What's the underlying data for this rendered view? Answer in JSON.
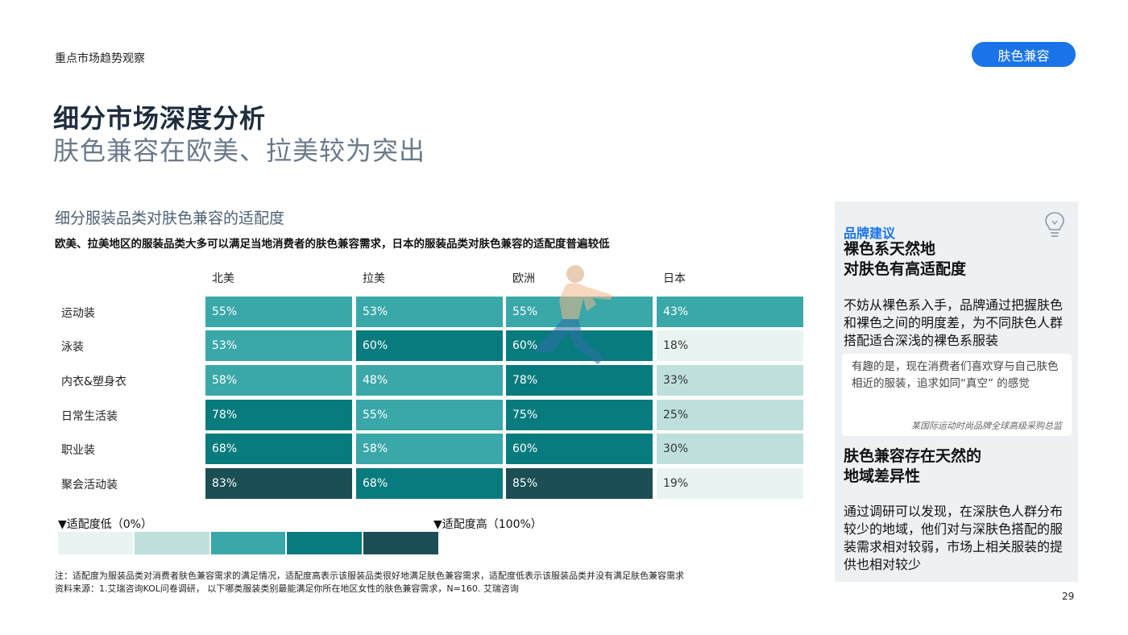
{
  "header": {
    "section_tag": "重点市场趋势观察",
    "category_pill": "肤色兼容"
  },
  "titles": {
    "main": "细分市场深度分析",
    "sub": "肤色兼容在欧美、拉美较为突出"
  },
  "chart": {
    "title": "细分服装品类对肤色兼容的适配度",
    "subtitle": "欧美、拉美地区的服装品类大多可以满足当地消费者的肤色兼容需求，日本的服装品类对肤色兼容的适配度普遍较低"
  },
  "chart_data": {
    "type": "heatmap",
    "columns": [
      "北美",
      "拉美",
      "欧洲",
      "日本"
    ],
    "rows": [
      "运动装",
      "泳装",
      "内衣&塑身衣",
      "日常生活装",
      "职业装",
      "聚会活动装"
    ],
    "values": [
      [
        55,
        53,
        55,
        43
      ],
      [
        53,
        60,
        60,
        18
      ],
      [
        58,
        48,
        78,
        33
      ],
      [
        78,
        55,
        75,
        25
      ],
      [
        68,
        58,
        60,
        30
      ],
      [
        83,
        68,
        85,
        19
      ]
    ],
    "labels": [
      [
        "55%",
        "53%",
        "55%",
        "43%"
      ],
      [
        "53%",
        "60%",
        "60%",
        "18%"
      ],
      [
        "58%",
        "48%",
        "78%",
        "33%"
      ],
      [
        "78%",
        "55%",
        "75%",
        "25%"
      ],
      [
        "68%",
        "58%",
        "60%",
        "30%"
      ],
      [
        "83%",
        "68%",
        "85%",
        "19%"
      ]
    ],
    "color_scale": [
      "#e8f4f1",
      "#bde0dc",
      "#3aa7a9",
      "#087b7e",
      "#1b4e55"
    ],
    "cell_colors": [
      [
        "#3aa7a9",
        "#3aa7a9",
        "#3aa7a9",
        "#3aa7a9"
      ],
      [
        "#3aa7a9",
        "#087b7e",
        "#087b7e",
        "#e8f4f1"
      ],
      [
        "#3aa7a9",
        "#3aa7a9",
        "#087b7e",
        "#bde0dc"
      ],
      [
        "#087b7e",
        "#3aa7a9",
        "#087b7e",
        "#bde0dc"
      ],
      [
        "#087b7e",
        "#3aa7a9",
        "#087b7e",
        "#bde0dc"
      ],
      [
        "#1b4e55",
        "#087b7e",
        "#1b4e55",
        "#e8f4f1"
      ]
    ],
    "legend_low": "▼适配度低（0%）",
    "legend_high": "▼适配度高（100%）"
  },
  "notes": {
    "note": "注：适配度为服装品类对消费者肤色兼容需求的满足情况，适配度高表示该服装品类很好地满足肤色兼容需求，适配度低表示该服装品类并没有满足肤色兼容需求",
    "source": "资料来源：1.艾瑞咨询KOL问卷调研， 以下哪类服装类别最能满足你所在地区女性的肤色兼容需求，N=160. 艾瑞咨询"
  },
  "page_number": "29",
  "side_panel": {
    "kicker": "品牌建议",
    "heading1_line1": "裸色系天然地",
    "heading1_line2": "对肤色有高适配度",
    "body1": "不妨从裸色系入手，品牌通过把握肤色和裸色之间的明度差，为不同肤色人群搭配适合深浅的裸色系服装",
    "quote": "有趣的是，现在消费者们喜欢穿与自己肤色相近的服装，追求如同“真空” 的感觉",
    "quote_source": "某国际运动时尚品牌全球高级采购总监",
    "heading2_line1": "肤色兼容存在天然的",
    "heading2_line2": "地域差异性",
    "body2": "通过调研可以发现，在深肤色人群分布较少的地域，他们对与深肤色搭配的服装需求相对较弱，市场上相关服装的提供也相对较少"
  },
  "icons": {
    "panel_icon": "lightbulb-icon",
    "watermark": "running-figure-watermark"
  }
}
